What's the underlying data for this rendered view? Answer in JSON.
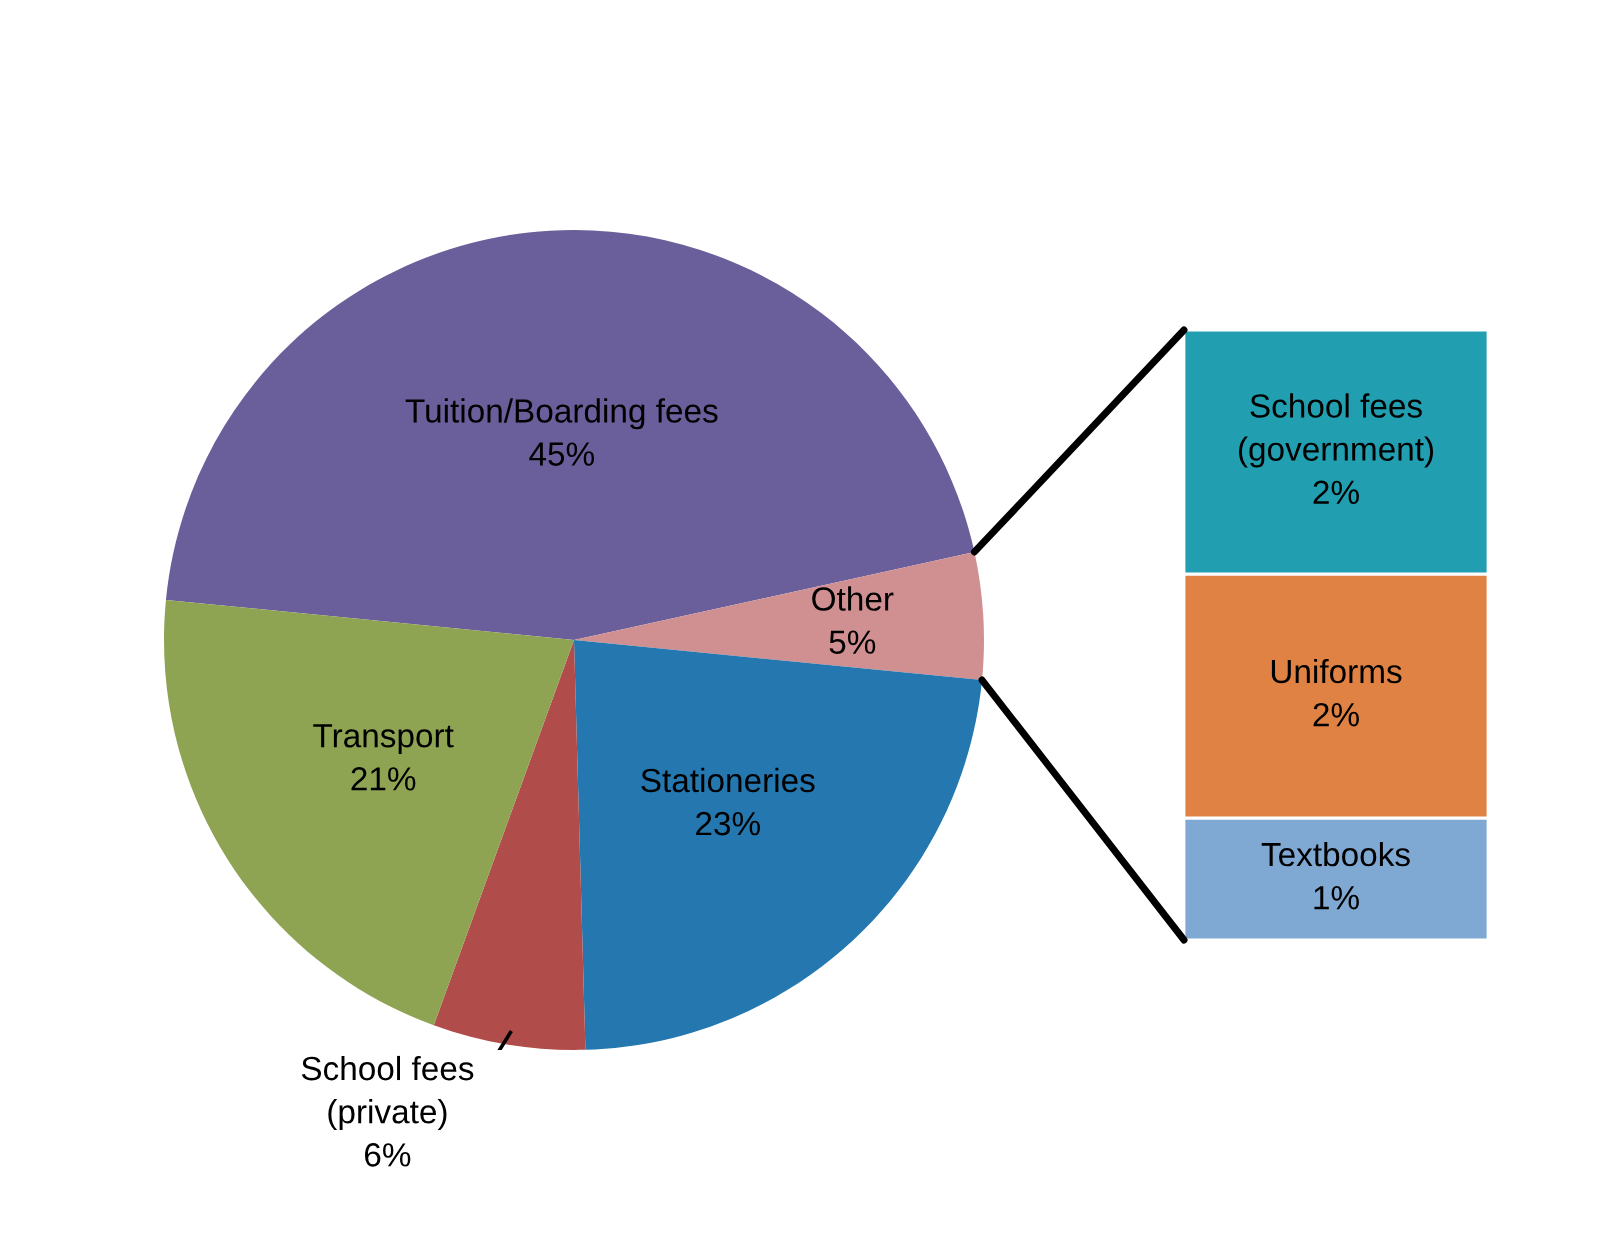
{
  "chart_data": [
    {
      "type": "pie",
      "categories": [
        "Tuition/Boarding fees",
        "Other",
        "Stationeries",
        "School fees (private)",
        "Transport"
      ],
      "values": [
        45,
        5,
        23,
        6,
        21
      ],
      "value_labels": [
        "45%",
        "5%",
        "23%",
        "6%",
        "21%"
      ],
      "colors": [
        "#6a5f9a",
        "#d09092",
        "#2577b0",
        "#b04c4a",
        "#8ea453"
      ]
    },
    {
      "type": "bar",
      "stacked": true,
      "categories": [
        null
      ],
      "series": [
        {
          "name": "Textbooks",
          "color": "#7fa8d2",
          "values": [
            1
          ],
          "value_labels": [
            "1%"
          ]
        },
        {
          "name": "Uniforms",
          "color": "#df8244",
          "values": [
            2
          ],
          "value_labels": [
            "2%"
          ]
        },
        {
          "name": "School fees (government)",
          "color": "#219fb0",
          "values": [
            2
          ],
          "value_labels": [
            "2%"
          ]
        }
      ]
    }
  ]
}
